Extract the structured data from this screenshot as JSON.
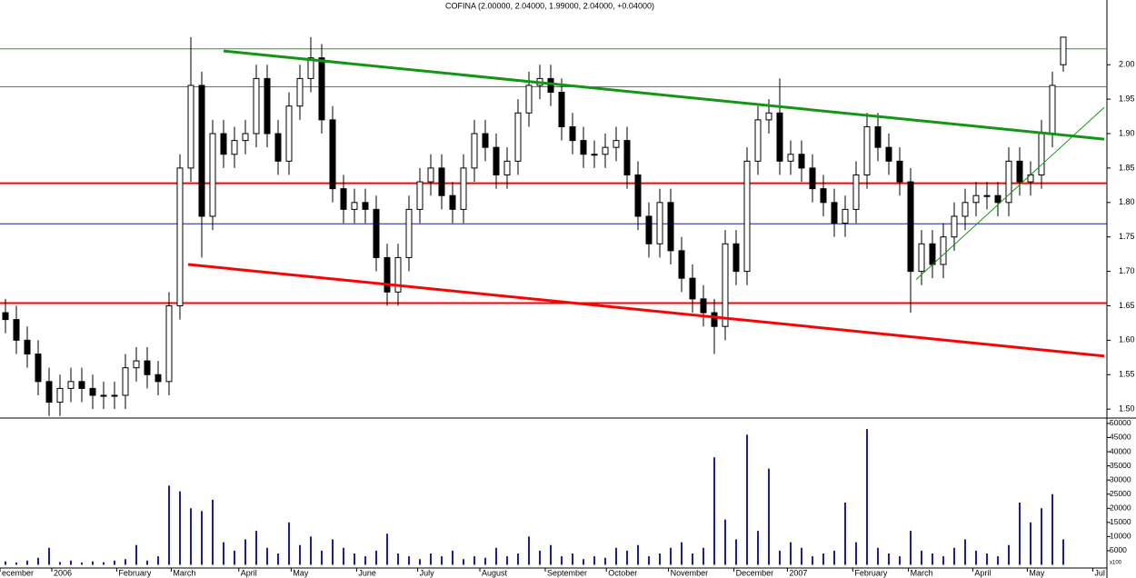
{
  "chart_data": [
    {
      "type": "candlestick",
      "title": "COFINA (2.00000, 2.04000, 1.99000, 2.04000, +0.04000)",
      "color": "#000000",
      "up_color": "#ffffff",
      "xlim": [
        -0.5,
        101
      ],
      "ylim": [
        1.487,
        2.094
      ],
      "yticks": [
        {
          "value": 1.5,
          "label": "1.50"
        },
        {
          "value": 1.55,
          "label": "1.55"
        },
        {
          "value": 1.6,
          "label": "1.60"
        },
        {
          "value": 1.65,
          "label": "1.65"
        },
        {
          "value": 1.7,
          "label": "1.70"
        },
        {
          "value": 1.75,
          "label": "1.75"
        },
        {
          "value": 1.8,
          "label": "1.80"
        },
        {
          "value": 1.85,
          "label": "1.85"
        },
        {
          "value": 1.9,
          "label": "1.90"
        },
        {
          "value": 1.95,
          "label": "1.95"
        },
        {
          "value": 2.0,
          "label": "2.00"
        }
      ],
      "open": [
        1.64,
        1.63,
        1.6,
        1.58,
        1.54,
        1.51,
        1.53,
        1.54,
        1.53,
        1.52,
        1.52,
        1.52,
        1.56,
        1.57,
        1.55,
        1.54,
        1.65,
        1.85,
        1.97,
        1.78,
        1.9,
        1.87,
        1.89,
        1.9,
        1.98,
        1.9,
        1.86,
        1.94,
        1.98,
        2.01,
        1.92,
        1.82,
        1.79,
        1.8,
        1.79,
        1.72,
        1.67,
        1.72,
        1.79,
        1.83,
        1.85,
        1.81,
        1.79,
        1.85,
        1.9,
        1.88,
        1.84,
        1.86,
        1.93,
        1.97,
        1.98,
        1.96,
        1.91,
        1.89,
        1.87,
        1.87,
        1.88,
        1.89,
        1.84,
        1.78,
        1.74,
        1.8,
        1.73,
        1.69,
        1.66,
        1.64,
        1.62,
        1.74,
        1.7,
        1.86,
        1.92,
        1.93,
        1.86,
        1.87,
        1.85,
        1.82,
        1.8,
        1.77,
        1.79,
        1.84,
        1.91,
        1.88,
        1.86,
        1.83,
        1.7,
        1.74,
        1.71,
        1.75,
        1.78,
        1.8,
        1.81,
        1.81,
        1.8,
        1.86,
        1.83,
        1.84,
        1.9,
        2.0
      ],
      "high": [
        1.66,
        1.65,
        1.62,
        1.6,
        1.56,
        1.55,
        1.56,
        1.56,
        1.55,
        1.54,
        1.54,
        1.58,
        1.59,
        1.59,
        1.57,
        1.67,
        1.87,
        2.04,
        1.99,
        1.92,
        1.92,
        1.91,
        1.92,
        2.0,
        2.0,
        1.92,
        1.96,
        2.0,
        2.04,
        2.03,
        1.94,
        1.84,
        1.82,
        1.82,
        1.81,
        1.74,
        1.74,
        1.81,
        1.85,
        1.87,
        1.87,
        1.83,
        1.87,
        1.92,
        1.92,
        1.9,
        1.88,
        1.95,
        1.99,
        2.0,
        2.0,
        1.98,
        1.93,
        1.91,
        1.89,
        1.9,
        1.91,
        1.91,
        1.86,
        1.8,
        1.82,
        1.82,
        1.75,
        1.71,
        1.68,
        1.66,
        1.76,
        1.76,
        1.88,
        1.94,
        1.95,
        1.98,
        1.89,
        1.89,
        1.87,
        1.84,
        1.82,
        1.81,
        1.86,
        1.93,
        1.93,
        1.9,
        1.88,
        1.85,
        1.76,
        1.76,
        1.77,
        1.8,
        1.82,
        1.83,
        1.83,
        1.83,
        1.88,
        1.88,
        1.86,
        1.92,
        1.99,
        2.04
      ],
      "low": [
        1.61,
        1.58,
        1.56,
        1.52,
        1.49,
        1.49,
        1.51,
        1.51,
        1.5,
        1.5,
        1.5,
        1.5,
        1.54,
        1.53,
        1.52,
        1.52,
        1.63,
        1.83,
        1.72,
        1.76,
        1.85,
        1.85,
        1.87,
        1.88,
        1.88,
        1.84,
        1.84,
        1.92,
        1.96,
        1.9,
        1.8,
        1.77,
        1.77,
        1.77,
        1.7,
        1.65,
        1.65,
        1.7,
        1.77,
        1.81,
        1.79,
        1.77,
        1.77,
        1.83,
        1.86,
        1.82,
        1.82,
        1.84,
        1.91,
        1.95,
        1.94,
        1.89,
        1.87,
        1.85,
        1.85,
        1.85,
        1.86,
        1.82,
        1.76,
        1.72,
        1.72,
        1.71,
        1.67,
        1.64,
        1.62,
        1.58,
        1.6,
        1.68,
        1.68,
        1.84,
        1.9,
        1.84,
        1.84,
        1.83,
        1.8,
        1.78,
        1.75,
        1.75,
        1.77,
        1.82,
        1.86,
        1.84,
        1.81,
        1.64,
        1.68,
        1.69,
        1.69,
        1.73,
        1.76,
        1.78,
        1.79,
        1.78,
        1.78,
        1.81,
        1.81,
        1.82,
        1.88,
        1.99
      ],
      "close": [
        1.63,
        1.6,
        1.58,
        1.54,
        1.51,
        1.53,
        1.54,
        1.53,
        1.52,
        1.52,
        1.52,
        1.56,
        1.57,
        1.55,
        1.54,
        1.65,
        1.85,
        1.97,
        1.78,
        1.9,
        1.87,
        1.89,
        1.9,
        1.98,
        1.9,
        1.86,
        1.94,
        1.98,
        2.01,
        1.92,
        1.82,
        1.79,
        1.8,
        1.79,
        1.72,
        1.67,
        1.72,
        1.79,
        1.83,
        1.85,
        1.81,
        1.79,
        1.85,
        1.9,
        1.88,
        1.84,
        1.86,
        1.93,
        1.97,
        1.98,
        1.96,
        1.91,
        1.89,
        1.87,
        1.87,
        1.88,
        1.89,
        1.84,
        1.78,
        1.74,
        1.8,
        1.73,
        1.69,
        1.66,
        1.64,
        1.62,
        1.74,
        1.7,
        1.86,
        1.92,
        1.93,
        1.86,
        1.87,
        1.85,
        1.82,
        1.8,
        1.77,
        1.79,
        1.84,
        1.91,
        1.88,
        1.86,
        1.83,
        1.7,
        1.74,
        1.71,
        1.75,
        1.78,
        1.8,
        1.81,
        1.81,
        1.8,
        1.86,
        1.83,
        1.84,
        1.9,
        1.97,
        2.04
      ],
      "levels": [
        {
          "value": 2.023,
          "color": "#2e9b2e",
          "width": 1
        },
        {
          "value": 1.968,
          "color": "#2e9b2e",
          "width": 1
        },
        {
          "value": 1.828,
          "color": "#ff0000",
          "width": 2
        },
        {
          "value": 1.769,
          "color": "#1a1aa8",
          "width": 1
        },
        {
          "value": 1.654,
          "color": "#ff0000",
          "width": 2
        }
      ],
      "trendlines": [
        {
          "x": [
            20,
            100.75
          ],
          "y": [
            2.02,
            1.892
          ],
          "color": "#149614",
          "width": 3
        },
        {
          "x": [
            16.75,
            100.75
          ],
          "y": [
            1.71,
            1.577
          ],
          "color": "#ff0000",
          "width": 3
        },
        {
          "x": [
            83.5,
            100.75
          ],
          "y": [
            1.688,
            1.938
          ],
          "color": "#149614",
          "width": 1
        }
      ]
    },
    {
      "type": "bar",
      "color": "#1a1ab4",
      "unit_label": "x100",
      "xlim": [
        -0.5,
        101
      ],
      "ylim": [
        0,
        51900
      ],
      "yticks": [
        5000,
        10000,
        15000,
        20000,
        25000,
        30000,
        35000,
        40000,
        45000,
        50000
      ],
      "xticks": [
        {
          "value": -0.5,
          "label": "ecember"
        },
        {
          "value": 4.25,
          "label": "2006"
        },
        {
          "value": 10.2,
          "label": "February"
        },
        {
          "value": 15.2,
          "label": "March"
        },
        {
          "value": 21.4,
          "label": "April"
        },
        {
          "value": 26.2,
          "label": "May"
        },
        {
          "value": 32.2,
          "label": "June"
        },
        {
          "value": 37.8,
          "label": "July"
        },
        {
          "value": 43.5,
          "label": "August"
        },
        {
          "value": 49.5,
          "label": "September"
        },
        {
          "value": 55.1,
          "label": "October"
        },
        {
          "value": 60.8,
          "label": "November"
        },
        {
          "value": 66.8,
          "label": "December"
        },
        {
          "value": 71.7,
          "label": "2007"
        },
        {
          "value": 77.7,
          "label": "February"
        },
        {
          "value": 82.8,
          "label": "March"
        },
        {
          "value": 88.7,
          "label": "April"
        },
        {
          "value": 93.7,
          "label": "May"
        },
        {
          "value": 99.7,
          "label": "Jul"
        }
      ],
      "values": [
        1200,
        800,
        1500,
        2500,
        6000,
        1000,
        1500,
        800,
        1200,
        900,
        1500,
        2000,
        7000,
        1500,
        3000,
        28000,
        26000,
        20000,
        19000,
        23000,
        8000,
        5000,
        9000,
        12000,
        6000,
        4000,
        15000,
        7000,
        10000,
        5000,
        9000,
        6000,
        4000,
        3000,
        5000,
        11000,
        4000,
        3000,
        2000,
        4000,
        3000,
        5000,
        2000,
        3000,
        2500,
        6000,
        3000,
        4000,
        10000,
        5000,
        7000,
        3000,
        4000,
        2000,
        3000,
        2500,
        6000,
        5000,
        7000,
        3000,
        4000,
        6000,
        8000,
        4000,
        6000,
        38000,
        16000,
        9000,
        46000,
        12000,
        34000,
        5000,
        8000,
        6000,
        3000,
        4000,
        5000,
        22000,
        8000,
        48000,
        6000,
        4000,
        3000,
        12000,
        5000,
        4000,
        3000,
        6000,
        9000,
        5000,
        4000,
        3000,
        7000,
        22000,
        15000,
        20000,
        25000,
        9000
      ]
    }
  ]
}
